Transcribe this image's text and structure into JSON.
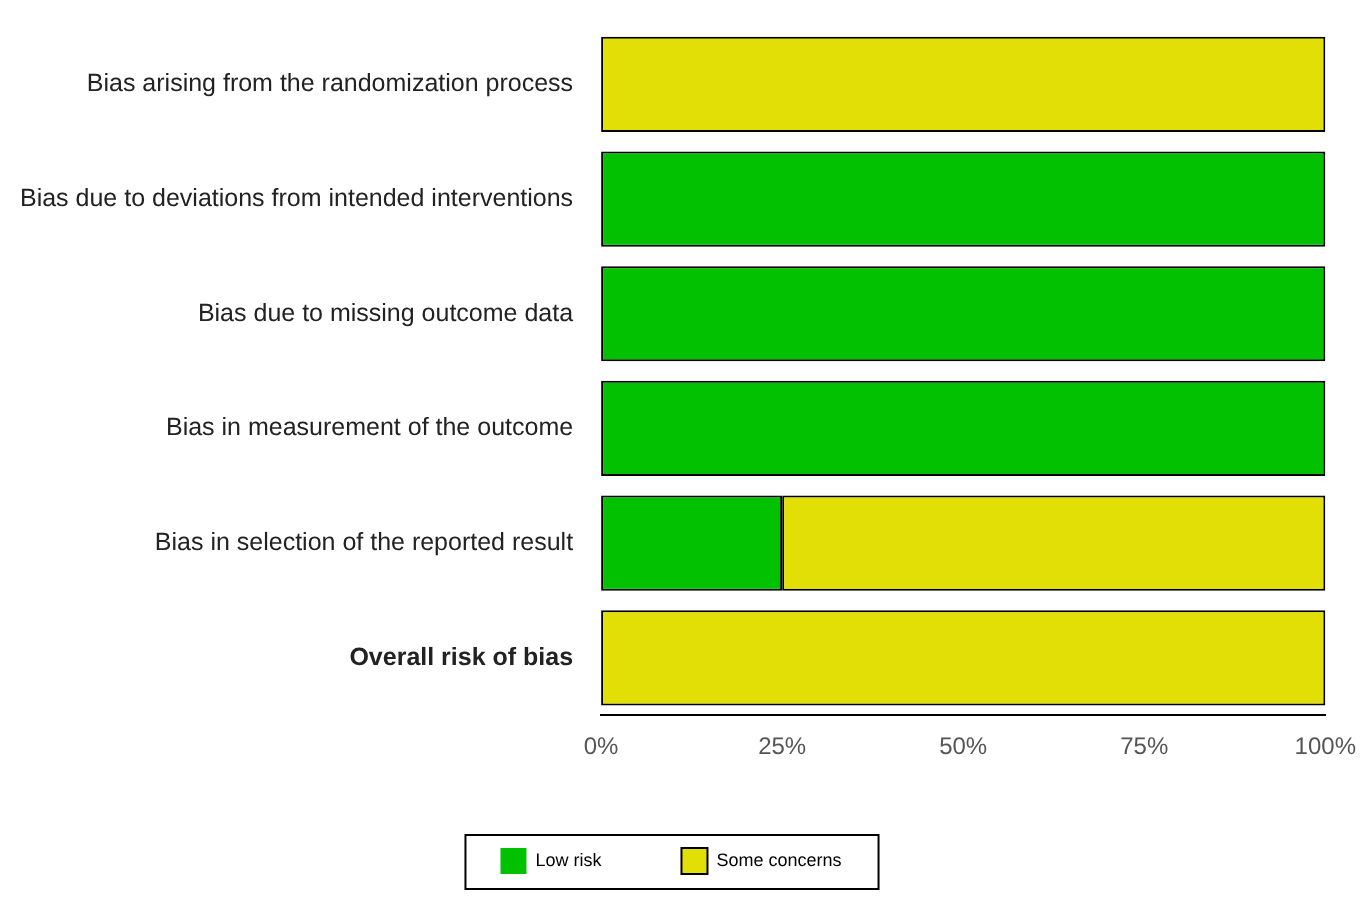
{
  "chart_data": {
    "type": "bar",
    "orientation": "horizontal",
    "stacked": true,
    "categories": [
      "Bias arising from the randomization process",
      "Bias due to deviations from intended interventions",
      "Bias due to missing outcome data",
      "Bias in measurement of the outcome",
      "Bias in selection of the reported result",
      "Overall risk of bias"
    ],
    "series": [
      {
        "name": "Low risk",
        "color": "#02c100",
        "values": [
          0,
          100,
          100,
          100,
          25,
          0
        ]
      },
      {
        "name": "Some concerns",
        "color": "#e2df07",
        "values": [
          100,
          0,
          0,
          0,
          75,
          100
        ]
      }
    ],
    "xlim": [
      0,
      100
    ],
    "xticks": [
      {
        "value": 0,
        "label": "0%"
      },
      {
        "value": 25,
        "label": "25%"
      },
      {
        "value": 50,
        "label": "50%"
      },
      {
        "value": 75,
        "label": "75%"
      },
      {
        "value": 100,
        "label": "100%"
      }
    ],
    "grid": false,
    "legend": "bottom"
  }
}
